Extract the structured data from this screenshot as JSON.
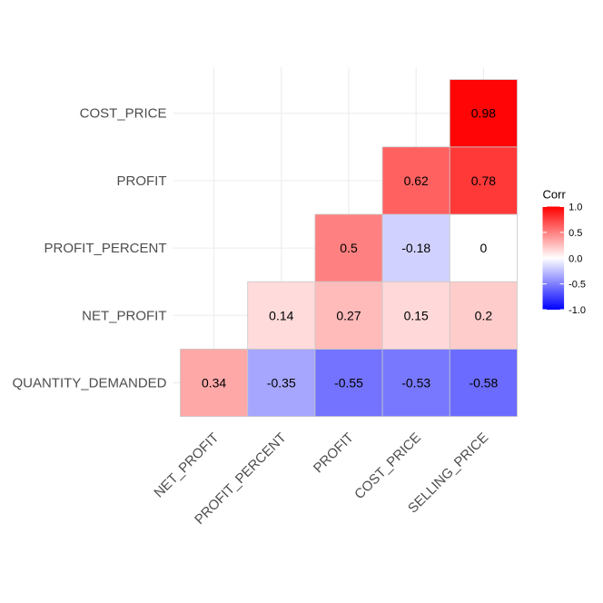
{
  "chart_data": {
    "type": "heatmap",
    "x_categories": [
      "NET_PROFIT",
      "PROFIT_PERCENT",
      "PROFIT",
      "COST_PRICE",
      "SELLING_PRICE"
    ],
    "y_categories": [
      "QUANTITY_DEMANDED",
      "NET_PROFIT",
      "PROFIT_PERCENT",
      "PROFIT",
      "COST_PRICE"
    ],
    "cells": [
      {
        "x": "NET_PROFIT",
        "y": "QUANTITY_DEMANDED",
        "value": 0.34,
        "label": "0.34"
      },
      {
        "x": "PROFIT_PERCENT",
        "y": "QUANTITY_DEMANDED",
        "value": -0.35,
        "label": "-0.35"
      },
      {
        "x": "PROFIT",
        "y": "QUANTITY_DEMANDED",
        "value": -0.55,
        "label": "-0.55"
      },
      {
        "x": "COST_PRICE",
        "y": "QUANTITY_DEMANDED",
        "value": -0.53,
        "label": "-0.53"
      },
      {
        "x": "SELLING_PRICE",
        "y": "QUANTITY_DEMANDED",
        "value": -0.58,
        "label": "-0.58"
      },
      {
        "x": "PROFIT_PERCENT",
        "y": "NET_PROFIT",
        "value": 0.14,
        "label": "0.14"
      },
      {
        "x": "PROFIT",
        "y": "NET_PROFIT",
        "value": 0.27,
        "label": "0.27"
      },
      {
        "x": "COST_PRICE",
        "y": "NET_PROFIT",
        "value": 0.15,
        "label": "0.15"
      },
      {
        "x": "SELLING_PRICE",
        "y": "NET_PROFIT",
        "value": 0.2,
        "label": "0.2"
      },
      {
        "x": "PROFIT",
        "y": "PROFIT_PERCENT",
        "value": 0.5,
        "label": "0.5"
      },
      {
        "x": "COST_PRICE",
        "y": "PROFIT_PERCENT",
        "value": -0.18,
        "label": "-0.18"
      },
      {
        "x": "SELLING_PRICE",
        "y": "PROFIT_PERCENT",
        "value": 0,
        "label": "0"
      },
      {
        "x": "COST_PRICE",
        "y": "PROFIT",
        "value": 0.62,
        "label": "0.62"
      },
      {
        "x": "SELLING_PRICE",
        "y": "PROFIT",
        "value": 0.78,
        "label": "0.78"
      },
      {
        "x": "SELLING_PRICE",
        "y": "COST_PRICE",
        "value": 0.98,
        "label": "0.98"
      }
    ],
    "legend": {
      "title": "Corr",
      "placement": "right",
      "range": [
        -1,
        1
      ],
      "ticks": [
        {
          "value": 1,
          "label": "1.0"
        },
        {
          "value": 0.5,
          "label": "0.5"
        },
        {
          "value": 0,
          "label": "0.0"
        },
        {
          "value": -0.5,
          "label": "-0.5"
        },
        {
          "value": -1,
          "label": "-1.0"
        }
      ]
    },
    "colors": {
      "low": "#0000FF",
      "mid": "#FFFFFF",
      "high": "#FF0000"
    },
    "grid": true
  }
}
